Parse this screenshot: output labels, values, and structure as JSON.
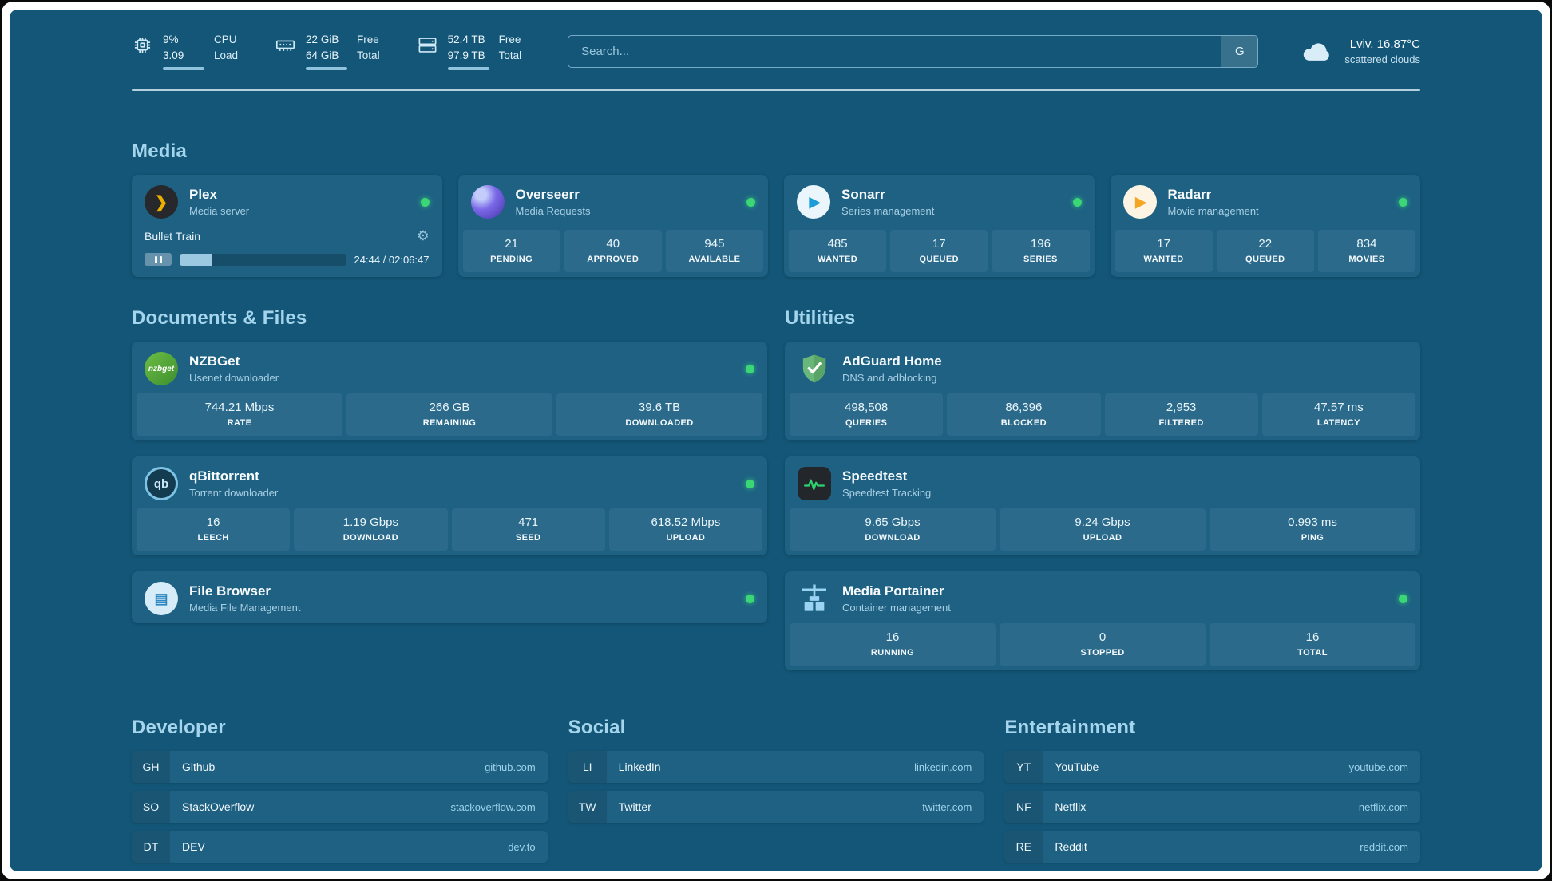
{
  "colors": {
    "page_background": "#135677",
    "card_background": "#1E6183",
    "section_heading": "#A5D5EC",
    "status_online_green": "#3BD675",
    "plex_gold": "#EBAF00",
    "overseerr_purple": "#7A68E8",
    "sonarr_blue": "#1E9CD7",
    "radarr_gold": "#F5A623",
    "nzbget_green": "#52A53B",
    "adguard_green": "#67B87A",
    "speedtest_green": "#2DD36F",
    "portainer_blue": "#9AD4F2",
    "filebrowser_blue": "#2E86C1"
  },
  "topbar": {
    "metrics": [
      {
        "icon": "cpu-icon",
        "value_top": "9%",
        "value_bottom": "3.09",
        "label_top": "CPU",
        "label_bottom": "Load"
      },
      {
        "icon": "ram-icon",
        "value_top": "22 GiB",
        "value_bottom": "64 GiB",
        "label_top": "Free",
        "label_bottom": "Total"
      },
      {
        "icon": "disk-icon",
        "value_top": "52.4 TB",
        "value_bottom": "97.9 TB",
        "label_top": "Free",
        "label_bottom": "Total"
      }
    ],
    "search": {
      "placeholder": "Search...",
      "engine_button": "G"
    },
    "weather": {
      "location": "Lviv, 16.87°C",
      "condition": "scattered clouds"
    }
  },
  "media": {
    "title": "Media",
    "plex": {
      "name": "Plex",
      "subtitle": "Media server",
      "status": "online",
      "now_playing": "Bullet Train",
      "elapsed_total": "24:44 / 02:06:47",
      "progress_percent": 19.5
    },
    "overseerr": {
      "name": "Overseerr",
      "subtitle": "Media Requests",
      "status": "online",
      "stats": [
        {
          "value": "21",
          "label": "PENDING"
        },
        {
          "value": "40",
          "label": "APPROVED"
        },
        {
          "value": "945",
          "label": "AVAILABLE"
        }
      ]
    },
    "sonarr": {
      "name": "Sonarr",
      "subtitle": "Series management",
      "status": "online",
      "stats": [
        {
          "value": "485",
          "label": "WANTED"
        },
        {
          "value": "17",
          "label": "QUEUED"
        },
        {
          "value": "196",
          "label": "SERIES"
        }
      ]
    },
    "radarr": {
      "name": "Radarr",
      "subtitle": "Movie management",
      "status": "online",
      "stats": [
        {
          "value": "17",
          "label": "WANTED"
        },
        {
          "value": "22",
          "label": "QUEUED"
        },
        {
          "value": "834",
          "label": "MOVIES"
        }
      ]
    }
  },
  "documents": {
    "title": "Documents & Files",
    "nzbget": {
      "name": "NZBGet",
      "subtitle": "Usenet downloader",
      "icon_text": "nzbget",
      "status": "online",
      "stats": [
        {
          "value": "744.21 Mbps",
          "label": "RATE"
        },
        {
          "value": "266 GB",
          "label": "REMAINING"
        },
        {
          "value": "39.6 TB",
          "label": "DOWNLOADED"
        }
      ]
    },
    "qbittorrent": {
      "name": "qBittorrent",
      "subtitle": "Torrent downloader",
      "icon_text": "qb",
      "status": "online",
      "stats": [
        {
          "value": "16",
          "label": "LEECH"
        },
        {
          "value": "1.19 Gbps",
          "label": "DOWNLOAD"
        },
        {
          "value": "471",
          "label": "SEED"
        },
        {
          "value": "618.52 Mbps",
          "label": "UPLOAD"
        }
      ]
    },
    "filebrowser": {
      "name": "File Browser",
      "subtitle": "Media File Management",
      "status": "online"
    }
  },
  "utilities": {
    "title": "Utilities",
    "adguard": {
      "name": "AdGuard Home",
      "subtitle": "DNS and adblocking",
      "stats": [
        {
          "value": "498,508",
          "label": "QUERIES"
        },
        {
          "value": "86,396",
          "label": "BLOCKED"
        },
        {
          "value": "2,953",
          "label": "FILTERED"
        },
        {
          "value": "47.57 ms",
          "label": "LATENCY"
        }
      ]
    },
    "speedtest": {
      "name": "Speedtest",
      "subtitle": "Speedtest Tracking",
      "stats": [
        {
          "value": "9.65 Gbps",
          "label": "DOWNLOAD"
        },
        {
          "value": "9.24 Gbps",
          "label": "UPLOAD"
        },
        {
          "value": "0.993 ms",
          "label": "PING"
        }
      ]
    },
    "portainer": {
      "name": "Media Portainer",
      "subtitle": "Container management",
      "status": "online",
      "stats": [
        {
          "value": "16",
          "label": "RUNNING"
        },
        {
          "value": "0",
          "label": "STOPPED"
        },
        {
          "value": "16",
          "label": "TOTAL"
        }
      ]
    }
  },
  "bookmarks": {
    "developer": {
      "title": "Developer",
      "links": [
        {
          "abbr": "GH",
          "name": "Github",
          "url": "github.com"
        },
        {
          "abbr": "SO",
          "name": "StackOverflow",
          "url": "stackoverflow.com"
        },
        {
          "abbr": "DT",
          "name": "DEV",
          "url": "dev.to"
        }
      ]
    },
    "social": {
      "title": "Social",
      "links": [
        {
          "abbr": "LI",
          "name": "LinkedIn",
          "url": "linkedin.com"
        },
        {
          "abbr": "TW",
          "name": "Twitter",
          "url": "twitter.com"
        }
      ]
    },
    "entertainment": {
      "title": "Entertainment",
      "links": [
        {
          "abbr": "YT",
          "name": "YouTube",
          "url": "youtube.com"
        },
        {
          "abbr": "NF",
          "name": "Netflix",
          "url": "netflix.com"
        },
        {
          "abbr": "RE",
          "name": "Reddit",
          "url": "reddit.com"
        }
      ]
    }
  }
}
